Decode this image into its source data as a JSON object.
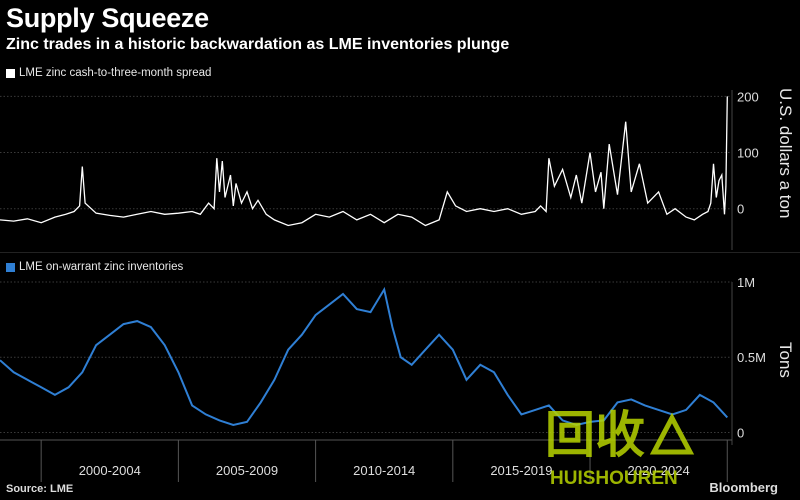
{
  "header": {
    "title": "Supply Squeeze",
    "subtitle": "Zinc trades in a historic backwardation as LME inventories plunge"
  },
  "footer": {
    "source": "Source: LME",
    "brand": "Bloomberg"
  },
  "watermark": {
    "text": "HUISHOUREN",
    "glyph": "回收"
  },
  "colors": {
    "spread_line": "#ffffff",
    "inventory_line": "#2f7fd4",
    "background": "#000000",
    "axis_text": "#dddddd",
    "watermark": "#b8d400"
  },
  "chart_data": [
    {
      "type": "line",
      "legend": "LME zinc cash-to-three-month spread",
      "ylabel": "U.S. dollars a ton",
      "ylim": [
        -70,
        215
      ],
      "yticks": [
        200,
        100,
        0
      ],
      "ytick_labels": [
        "200",
        "100",
        "0"
      ],
      "xlim": [
        1998.0,
        2024.6
      ],
      "series": [
        {
          "name": "LME zinc cash-to-three-month spread",
          "x": [
            1998.0,
            1998.5,
            1999.0,
            1999.5,
            2000.0,
            2000.4,
            2000.7,
            2000.9,
            2001.0,
            2001.1,
            2001.5,
            2002.0,
            2002.5,
            2003.0,
            2003.5,
            2004.0,
            2004.5,
            2005.0,
            2005.3,
            2005.6,
            2005.8,
            2005.9,
            2006.0,
            2006.1,
            2006.2,
            2006.4,
            2006.5,
            2006.6,
            2006.8,
            2007.0,
            2007.2,
            2007.4,
            2007.7,
            2008.0,
            2008.5,
            2009.0,
            2009.5,
            2010.0,
            2010.5,
            2011.0,
            2011.5,
            2012.0,
            2012.5,
            2013.0,
            2013.5,
            2014.0,
            2014.3,
            2014.6,
            2015.0,
            2015.5,
            2016.0,
            2016.5,
            2017.0,
            2017.5,
            2017.7,
            2017.9,
            2018.0,
            2018.2,
            2018.5,
            2018.8,
            2019.0,
            2019.2,
            2019.5,
            2019.7,
            2019.9,
            2020.0,
            2020.2,
            2020.5,
            2020.8,
            2021.0,
            2021.3,
            2021.6,
            2022.0,
            2022.3,
            2022.6,
            2023.0,
            2023.3,
            2023.6,
            2023.8,
            2023.9,
            2024.0,
            2024.1,
            2024.2,
            2024.3,
            2024.4,
            2024.45,
            2024.5
          ],
          "values": [
            -20,
            -22,
            -18,
            -25,
            -15,
            -10,
            -5,
            5,
            75,
            10,
            -8,
            -12,
            -15,
            -10,
            -5,
            -10,
            -8,
            -5,
            -10,
            10,
            0,
            90,
            30,
            85,
            20,
            60,
            5,
            45,
            10,
            30,
            0,
            15,
            -10,
            -20,
            -30,
            -25,
            -10,
            -15,
            -5,
            -20,
            -10,
            -25,
            -10,
            -15,
            -30,
            -20,
            30,
            5,
            -5,
            0,
            -5,
            0,
            -10,
            -5,
            5,
            -5,
            90,
            40,
            70,
            20,
            60,
            10,
            100,
            30,
            65,
            0,
            115,
            25,
            155,
            30,
            80,
            10,
            30,
            -10,
            0,
            -15,
            -20,
            -10,
            -5,
            10,
            80,
            20,
            50,
            60,
            -10,
            40,
            200
          ]
        }
      ]
    },
    {
      "type": "line",
      "legend": "LME on-warrant zinc inventories",
      "ylabel": "Tons",
      "ylim": [
        -0.05,
        1.0
      ],
      "yticks": [
        1.0,
        0.5,
        0
      ],
      "ytick_labels": [
        "1M",
        "0.5M",
        "0"
      ],
      "xlim": [
        1998.0,
        2024.6
      ],
      "xticks": [
        2002,
        2007,
        2012,
        2017,
        2022
      ],
      "xtick_labels": [
        "2000-2004",
        "2005-2009",
        "2010-2014",
        "2015-2019",
        "2020-2024"
      ],
      "series": [
        {
          "name": "LME on-warrant zinc inventories",
          "x": [
            1998.0,
            1998.5,
            1999.0,
            1999.5,
            2000.0,
            2000.5,
            2001.0,
            2001.5,
            2002.0,
            2002.5,
            2003.0,
            2003.5,
            2004.0,
            2004.5,
            2005.0,
            2005.5,
            2006.0,
            2006.5,
            2007.0,
            2007.5,
            2008.0,
            2008.5,
            2009.0,
            2009.5,
            2010.0,
            2010.5,
            2011.0,
            2011.5,
            2012.0,
            2012.3,
            2012.6,
            2013.0,
            2013.5,
            2014.0,
            2014.5,
            2015.0,
            2015.5,
            2016.0,
            2016.5,
            2017.0,
            2017.5,
            2018.0,
            2018.5,
            2019.0,
            2019.5,
            2020.0,
            2020.5,
            2021.0,
            2021.5,
            2022.0,
            2022.5,
            2023.0,
            2023.5,
            2024.0,
            2024.5
          ],
          "values": [
            0.48,
            0.4,
            0.35,
            0.3,
            0.25,
            0.3,
            0.4,
            0.58,
            0.65,
            0.72,
            0.74,
            0.7,
            0.58,
            0.4,
            0.18,
            0.12,
            0.08,
            0.05,
            0.07,
            0.2,
            0.35,
            0.55,
            0.65,
            0.78,
            0.85,
            0.92,
            0.82,
            0.8,
            0.95,
            0.7,
            0.5,
            0.45,
            0.55,
            0.65,
            0.55,
            0.35,
            0.45,
            0.4,
            0.25,
            0.12,
            0.15,
            0.18,
            0.08,
            0.05,
            0.07,
            0.08,
            0.2,
            0.22,
            0.18,
            0.15,
            0.12,
            0.15,
            0.25,
            0.2,
            0.1
          ]
        }
      ]
    }
  ]
}
